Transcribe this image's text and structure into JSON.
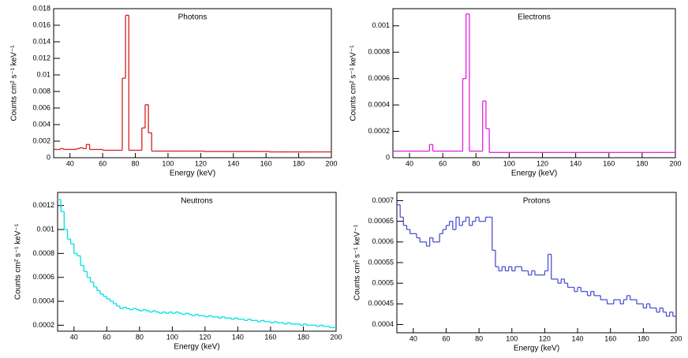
{
  "chart_data": [
    {
      "type": "histogram",
      "title": "Photons",
      "x_label": "Energy (keV)",
      "y_label": "Counts cm² s⁻¹ keV⁻¹",
      "color": "#d62020",
      "bins": [
        30,
        32,
        34,
        36,
        38,
        40,
        42,
        44,
        46,
        48,
        50,
        52,
        54,
        56,
        58,
        60,
        62,
        64,
        66,
        68,
        70,
        72,
        74,
        76,
        78,
        80,
        82,
        84,
        86,
        88,
        90,
        92,
        94,
        96,
        98,
        100,
        102,
        104,
        106,
        108,
        110,
        112,
        114,
        116,
        118,
        120,
        122,
        124,
        126,
        128,
        130,
        132,
        134,
        136,
        138,
        140,
        142,
        144,
        146,
        148,
        150,
        152,
        154,
        156,
        158,
        160,
        162,
        164,
        166,
        168,
        170,
        172,
        174,
        176,
        178,
        180,
        182,
        184,
        186,
        188,
        190,
        192,
        194,
        196,
        198,
        200
      ],
      "values": [
        0.001,
        0.001,
        0.0011,
        0.001,
        0.001,
        0.001,
        0.001,
        0.0011,
        0.0012,
        0.0011,
        0.0016,
        0.001,
        0.001,
        0.001,
        0.001,
        0.0009,
        0.0009,
        0.0009,
        0.0009,
        0.0009,
        0.0009,
        0.0096,
        0.0172,
        0.0009,
        0.0009,
        0.0009,
        0.0009,
        0.0036,
        0.0064,
        0.003,
        0.0008,
        0.0008,
        0.0008,
        0.0008,
        0.0008,
        0.0008,
        0.0008,
        0.0008,
        0.0008,
        0.0008,
        0.0008,
        0.0008,
        0.0008,
        0.0008,
        0.0008,
        0.0008,
        0.00075,
        0.00075,
        0.00075,
        0.00075,
        0.00075,
        0.00075,
        0.00075,
        0.00075,
        0.00075,
        0.00075,
        0.00075,
        0.00075,
        0.00075,
        0.00075,
        0.00075,
        0.00075,
        0.00075,
        0.00075,
        0.00075,
        0.00075,
        0.0007,
        0.0007,
        0.0007,
        0.0007,
        0.0007,
        0.0007,
        0.0007,
        0.0007,
        0.0007,
        0.0007,
        0.0007,
        0.0007,
        0.0007,
        0.0007,
        0.0007,
        0.0007,
        0.0007,
        0.0007,
        0.0007
      ],
      "xlim": [
        30,
        200
      ],
      "ylim": [
        0,
        0.018
      ],
      "xticks": [
        40,
        60,
        80,
        100,
        120,
        140,
        160,
        180,
        200
      ],
      "yticks": [
        0,
        0.002,
        0.004,
        0.006,
        0.008,
        0.01,
        0.012,
        0.014,
        0.016,
        0.018
      ]
    },
    {
      "type": "histogram",
      "title": "Electrons",
      "x_label": "Energy (keV)",
      "y_label": "Counts cm² s⁻¹ keV⁻¹",
      "color": "#e020e0",
      "bins": [
        30,
        32,
        34,
        36,
        38,
        40,
        42,
        44,
        46,
        48,
        50,
        52,
        54,
        56,
        58,
        60,
        62,
        64,
        66,
        68,
        70,
        72,
        74,
        76,
        78,
        80,
        82,
        84,
        86,
        88,
        90,
        92,
        94,
        96,
        98,
        100,
        102,
        104,
        106,
        108,
        110,
        112,
        114,
        116,
        118,
        120,
        122,
        124,
        126,
        128,
        130,
        132,
        134,
        136,
        138,
        140,
        142,
        144,
        146,
        148,
        150,
        152,
        154,
        156,
        158,
        160,
        162,
        164,
        166,
        168,
        170,
        172,
        174,
        176,
        178,
        180,
        182,
        184,
        186,
        188,
        190,
        192,
        194,
        196,
        198,
        200
      ],
      "values": [
        5e-05,
        5e-05,
        5e-05,
        5e-05,
        5e-05,
        5e-05,
        5e-05,
        5e-05,
        5e-05,
        5e-05,
        5e-05,
        0.0001,
        5e-05,
        5e-05,
        5e-05,
        5e-05,
        5e-05,
        5e-05,
        5e-05,
        5e-05,
        5e-05,
        0.0006,
        0.00109,
        5e-05,
        5e-05,
        5e-05,
        5e-05,
        0.00043,
        0.00022,
        4e-05,
        4e-05,
        4e-05,
        4e-05,
        4e-05,
        4e-05,
        4e-05,
        4e-05,
        4e-05,
        4e-05,
        4e-05,
        4e-05,
        4e-05,
        4e-05,
        4e-05,
        4e-05,
        4e-05,
        4e-05,
        4e-05,
        4e-05,
        4e-05,
        4e-05,
        4e-05,
        4e-05,
        4e-05,
        4e-05,
        4e-05,
        4e-05,
        4e-05,
        4e-05,
        4e-05,
        4e-05,
        4e-05,
        4e-05,
        4e-05,
        4e-05,
        4e-05,
        4e-05,
        4e-05,
        4e-05,
        4e-05,
        4e-05,
        4e-05,
        4e-05,
        4e-05,
        4e-05,
        4e-05,
        4e-05,
        4e-05,
        4e-05,
        4e-05,
        4e-05,
        4e-05,
        4e-05,
        4e-05,
        4e-05
      ],
      "xlim": [
        30,
        200
      ],
      "ylim": [
        0,
        0.00113
      ],
      "xticks": [
        40,
        60,
        80,
        100,
        120,
        140,
        160,
        180,
        200
      ],
      "yticks": [
        0,
        0.0002,
        0.0004,
        0.0006,
        0.0008,
        0.001
      ]
    },
    {
      "type": "histogram",
      "title": "Neutrons",
      "x_label": "Energy (keV)",
      "y_label": "Counts cm² s⁻¹ keV⁻¹",
      "color": "#00e0e8",
      "bins": [
        30,
        32,
        34,
        36,
        38,
        40,
        42,
        44,
        46,
        48,
        50,
        52,
        54,
        56,
        58,
        60,
        62,
        64,
        66,
        68,
        70,
        72,
        74,
        76,
        78,
        80,
        82,
        84,
        86,
        88,
        90,
        92,
        94,
        96,
        98,
        100,
        102,
        104,
        106,
        108,
        110,
        112,
        114,
        116,
        118,
        120,
        122,
        124,
        126,
        128,
        130,
        132,
        134,
        136,
        138,
        140,
        142,
        144,
        146,
        148,
        150,
        152,
        154,
        156,
        158,
        160,
        162,
        164,
        166,
        168,
        170,
        172,
        174,
        176,
        178,
        180,
        182,
        184,
        186,
        188,
        190,
        192,
        194,
        196,
        198,
        200
      ],
      "values": [
        0.00125,
        0.00115,
        0.001,
        0.00092,
        0.00088,
        0.0008,
        0.00078,
        0.0007,
        0.00065,
        0.0006,
        0.00056,
        0.00052,
        0.00049,
        0.00046,
        0.00044,
        0.00042,
        0.0004,
        0.00038,
        0.00036,
        0.00034,
        0.00035,
        0.00034,
        0.00033,
        0.00034,
        0.00033,
        0.00032,
        0.00033,
        0.00032,
        0.00031,
        0.00032,
        0.00031,
        0.0003,
        0.00031,
        0.0003,
        0.00031,
        0.0003,
        0.00031,
        0.0003,
        0.00029,
        0.0003,
        0.00029,
        0.00028,
        0.00029,
        0.00028,
        0.00028,
        0.00027,
        0.00028,
        0.00027,
        0.00027,
        0.00026,
        0.00027,
        0.00026,
        0.00026,
        0.00025,
        0.00026,
        0.00025,
        0.00025,
        0.00024,
        0.00025,
        0.00024,
        0.00024,
        0.00023,
        0.00024,
        0.00023,
        0.00023,
        0.00022,
        0.00023,
        0.00022,
        0.00022,
        0.00021,
        0.00022,
        0.00021,
        0.00021,
        0.00021,
        0.0002,
        0.00021,
        0.0002,
        0.0002,
        0.0002,
        0.00019,
        0.0002,
        0.00019,
        0.00019,
        0.00018,
        0.00018
      ],
      "xlim": [
        30,
        200
      ],
      "ylim": [
        0.00015,
        0.00131
      ],
      "xticks": [
        40,
        60,
        80,
        100,
        120,
        140,
        160,
        180,
        200
      ],
      "yticks": [
        0.0002,
        0.0004,
        0.0006,
        0.0008,
        0.001,
        0.0012
      ]
    },
    {
      "type": "histogram",
      "title": "Protons",
      "x_label": "Energy (keV)",
      "y_label": "Counts cm² s⁻¹ keV⁻¹",
      "color": "#5050d0",
      "bins": [
        30,
        32,
        34,
        36,
        38,
        40,
        42,
        44,
        46,
        48,
        50,
        52,
        54,
        56,
        58,
        60,
        62,
        64,
        66,
        68,
        70,
        72,
        74,
        76,
        78,
        80,
        82,
        84,
        86,
        88,
        90,
        92,
        94,
        96,
        98,
        100,
        102,
        104,
        106,
        108,
        110,
        112,
        114,
        116,
        118,
        120,
        122,
        124,
        126,
        128,
        130,
        132,
        134,
        136,
        138,
        140,
        142,
        144,
        146,
        148,
        150,
        152,
        154,
        156,
        158,
        160,
        162,
        164,
        166,
        168,
        170,
        172,
        174,
        176,
        178,
        180,
        182,
        184,
        186,
        188,
        190,
        192,
        194,
        196,
        198,
        200
      ],
      "values": [
        0.00069,
        0.00066,
        0.00064,
        0.00063,
        0.00062,
        0.00062,
        0.00061,
        0.0006,
        0.0006,
        0.00059,
        0.00061,
        0.0006,
        0.0006,
        0.00062,
        0.00063,
        0.00064,
        0.00065,
        0.00063,
        0.00066,
        0.00064,
        0.00065,
        0.00066,
        0.00064,
        0.00065,
        0.00066,
        0.00065,
        0.00065,
        0.00066,
        0.00066,
        0.00058,
        0.00054,
        0.00053,
        0.00054,
        0.00053,
        0.00054,
        0.00053,
        0.00054,
        0.00054,
        0.00053,
        0.00053,
        0.00052,
        0.00053,
        0.00052,
        0.00052,
        0.00052,
        0.00053,
        0.00057,
        0.00051,
        0.00051,
        0.0005,
        0.00051,
        0.0005,
        0.00049,
        0.00049,
        0.00048,
        0.00049,
        0.00048,
        0.00048,
        0.00047,
        0.00048,
        0.00047,
        0.00047,
        0.00046,
        0.00046,
        0.00045,
        0.00045,
        0.00046,
        0.00046,
        0.00045,
        0.00046,
        0.00047,
        0.00046,
        0.00046,
        0.00045,
        0.00045,
        0.00044,
        0.00045,
        0.00044,
        0.00044,
        0.00043,
        0.00044,
        0.00043,
        0.00042,
        0.00043,
        0.00042
      ],
      "xlim": [
        30,
        200
      ],
      "ylim": [
        0.00038,
        0.00072
      ],
      "xticks": [
        40,
        60,
        80,
        100,
        120,
        140,
        160,
        180,
        200
      ],
      "yticks": [
        0.0004,
        0.00045,
        0.0005,
        0.00055,
        0.0006,
        0.00065,
        0.0007
      ]
    }
  ]
}
